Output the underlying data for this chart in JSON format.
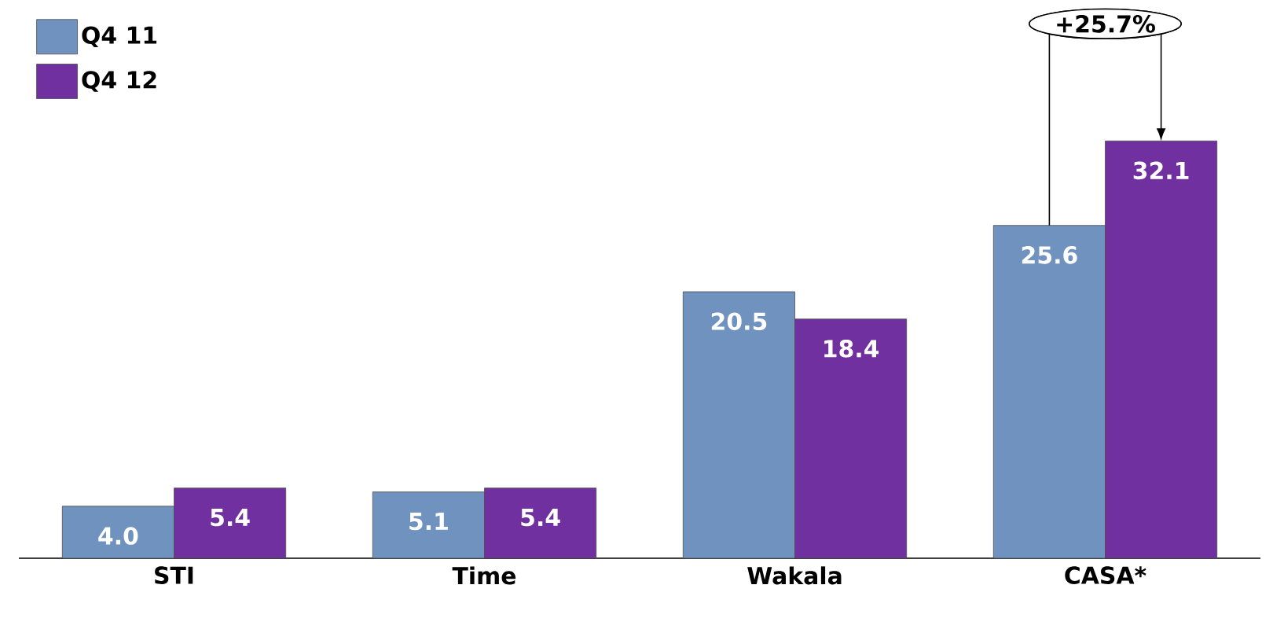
{
  "chart_data": {
    "type": "bar",
    "categories": [
      "STI",
      "Time",
      "Wakala",
      "CASA*"
    ],
    "series": [
      {
        "name": "Q4 11",
        "color": "#7092be",
        "values": [
          4.0,
          5.1,
          20.5,
          25.6
        ],
        "value_labels": [
          "4.0",
          "5.1",
          "20.5",
          "25.6"
        ]
      },
      {
        "name": "Q4 12",
        "color": "#7030a0",
        "values": [
          5.4,
          5.4,
          18.4,
          32.1
        ],
        "value_labels": [
          "5.4",
          "5.4",
          "18.4",
          "32.1"
        ]
      }
    ],
    "legend": "top left",
    "annotations": [
      "+25.7%"
    ]
  }
}
